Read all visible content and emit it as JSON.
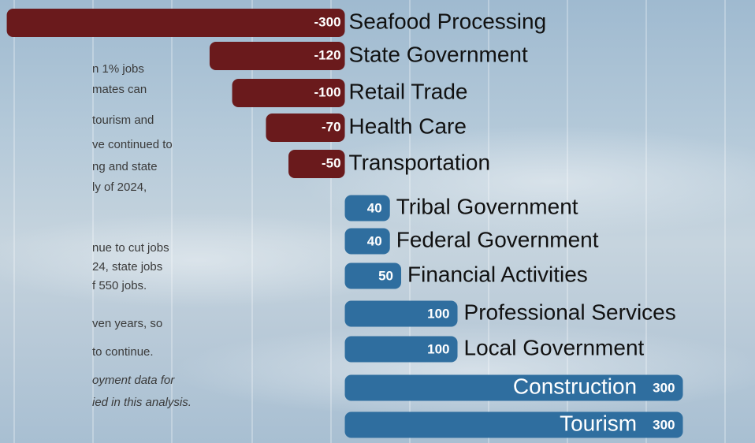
{
  "chart_data": {
    "type": "bar",
    "orientation": "horizontal",
    "categories": [
      "Seafood Processing",
      "State Government",
      "Retail Trade",
      "Health Care",
      "Transportation",
      "Tribal Government",
      "Federal Government",
      "Financial Activities",
      "Professional Services",
      "Local Government",
      "Construction",
      "Tourism"
    ],
    "values": [
      -300,
      -120,
      -100,
      -70,
      -50,
      40,
      40,
      50,
      100,
      100,
      300,
      300
    ],
    "negative_color": "#6a1a1c",
    "positive_color": "#2f6e9f",
    "xlim": [
      -306,
      364
    ]
  },
  "text_fragments": {
    "lines": [
      "n 1% jobs",
      "mates can",
      "tourism and",
      "ve continued to",
      "ng and state",
      "ly of 2024,",
      "nue to cut jobs",
      "24, state jobs",
      "f 550 jobs.",
      "ven years, so",
      "to continue."
    ],
    "note": [
      "oyment data for",
      "ied in this analysis."
    ]
  }
}
